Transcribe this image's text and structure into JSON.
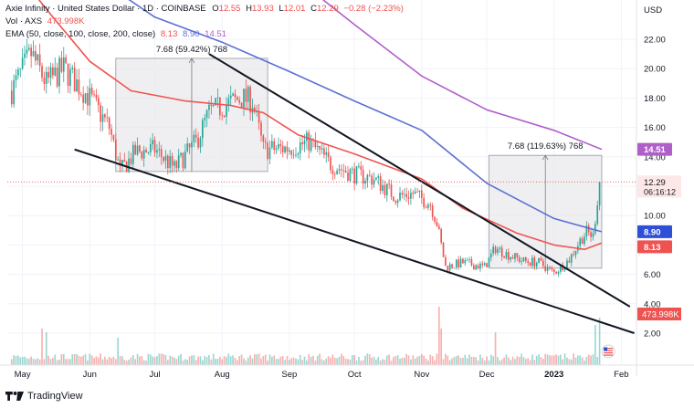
{
  "legend": {
    "symbol_title": "Axie Infinity · United States Dollar · 1D · COINBASE",
    "o_label": "O",
    "o_value": "12.55",
    "h_label": "H",
    "h_value": "13.93",
    "l_label": "L",
    "l_value": "12.01",
    "c_label": "C",
    "c_value": "12.29",
    "change": "−0.28 (−2.23%)",
    "vol_label": "Vol · AXS",
    "vol_value": "473.998K",
    "ema_label": "EMA (50, close, 100, close, 200, close)",
    "ema50": "8.13",
    "ema100": "8.90",
    "ema200": "14.51"
  },
  "footer": {
    "brand": "TradingView"
  },
  "colors": {
    "up": "#26a69a",
    "down": "#ef5350",
    "ema50": "#ef5350",
    "ema100": "#5b6fd4",
    "ema200": "#b05fc9",
    "box_fill": "#e9e9ec",
    "trendline": "#131722"
  },
  "chart_data": {
    "type": "candlestick",
    "currency_label": "USD",
    "y_ticks": [
      "22.00",
      "20.00",
      "18.00",
      "16.00",
      "14.00",
      "12.00",
      "10.00",
      "8.00",
      "6.00",
      "4.00",
      "2.00"
    ],
    "y_tick_values": [
      22,
      20,
      18,
      16,
      14,
      12,
      10,
      8,
      6,
      4,
      2
    ],
    "x_ticks": [
      "May",
      "Jun",
      "Jul",
      "Aug",
      "Sep",
      "Oct",
      "Nov",
      "Dec",
      "2023",
      "Feb"
    ],
    "x_tick_dates": [
      "2022-05-01",
      "2022-06-01",
      "2022-07-01",
      "2022-08-01",
      "2022-09-01",
      "2022-10-01",
      "2022-11-01",
      "2022-12-01",
      "2023-01-01",
      "2023-02-01"
    ],
    "date_range": [
      "2022-04-24",
      "2023-02-08"
    ],
    "price_path": [
      [
        "2022-04-26",
        18.5
      ],
      [
        "2022-05-05",
        21.0
      ],
      [
        "2022-05-12",
        19.0
      ],
      [
        "2022-05-20",
        20.0
      ],
      [
        "2022-06-01",
        18.0
      ],
      [
        "2022-06-10",
        16.0
      ],
      [
        "2022-06-15",
        13.0
      ],
      [
        "2022-06-22",
        14.3
      ],
      [
        "2022-07-01",
        14.5
      ],
      [
        "2022-07-10",
        13.2
      ],
      [
        "2022-07-20",
        15.0
      ],
      [
        "2022-07-26",
        17.0
      ],
      [
        "2022-08-02",
        17.5
      ],
      [
        "2022-08-10",
        18.0
      ],
      [
        "2022-08-15",
        17.8
      ],
      [
        "2022-08-20",
        14.5
      ],
      [
        "2022-09-01",
        14.6
      ],
      [
        "2022-09-10",
        15.0
      ],
      [
        "2022-09-20",
        13.5
      ],
      [
        "2022-10-01",
        12.8
      ],
      [
        "2022-10-10",
        12.5
      ],
      [
        "2022-10-20",
        11.3
      ],
      [
        "2022-10-28",
        11.5
      ],
      [
        "2022-11-05",
        10.8
      ],
      [
        "2022-11-08",
        9.5
      ],
      [
        "2022-11-12",
        6.5
      ],
      [
        "2022-11-20",
        6.8
      ],
      [
        "2022-11-30",
        6.5
      ],
      [
        "2022-12-05",
        7.8
      ],
      [
        "2022-12-10",
        7.4
      ],
      [
        "2022-12-18",
        6.9
      ],
      [
        "2022-12-25",
        6.8
      ],
      [
        "2023-01-01",
        6.1
      ],
      [
        "2023-01-08",
        7.0
      ],
      [
        "2023-01-13",
        8.3
      ],
      [
        "2023-01-16",
        8.9
      ],
      [
        "2023-01-19",
        8.6
      ],
      [
        "2023-01-22",
        12.3
      ]
    ],
    "ema50": [
      [
        "2022-04-26",
        27.0
      ],
      [
        "2022-05-15",
        23.5
      ],
      [
        "2022-06-01",
        20.5
      ],
      [
        "2022-06-20",
        18.5
      ],
      [
        "2022-07-15",
        17.8
      ],
      [
        "2022-08-05",
        17.5
      ],
      [
        "2022-08-20",
        17.0
      ],
      [
        "2022-09-05",
        15.5
      ],
      [
        "2022-10-01",
        14.2
      ],
      [
        "2022-11-01",
        12.5
      ],
      [
        "2022-11-20",
        10.5
      ],
      [
        "2022-12-15",
        8.8
      ],
      [
        "2023-01-01",
        8.0
      ],
      [
        "2023-01-15",
        7.7
      ],
      [
        "2023-01-23",
        8.13
      ]
    ],
    "ema100": [
      [
        "2022-05-10",
        29.0
      ],
      [
        "2022-06-01",
        26.5
      ],
      [
        "2022-07-01",
        23.5
      ],
      [
        "2022-08-01",
        21.8
      ],
      [
        "2022-09-01",
        19.8
      ],
      [
        "2022-10-01",
        17.8
      ],
      [
        "2022-11-01",
        15.8
      ],
      [
        "2022-12-01",
        12.2
      ],
      [
        "2023-01-01",
        9.8
      ],
      [
        "2023-01-23",
        8.9
      ]
    ],
    "ema200": [
      [
        "2022-08-01",
        29.0
      ],
      [
        "2022-09-01",
        26.5
      ],
      [
        "2022-10-01",
        23.0
      ],
      [
        "2022-11-01",
        19.5
      ],
      [
        "2022-12-01",
        17.2
      ],
      [
        "2023-01-01",
        15.8
      ],
      [
        "2023-01-23",
        14.51
      ]
    ],
    "pattern_boxes": [
      {
        "start": "2022-06-13",
        "end": "2022-08-22",
        "low": 13.0,
        "high": 20.7,
        "label": "7.68 (59.42%) 768"
      },
      {
        "start": "2022-12-02",
        "end": "2023-01-23",
        "low": 6.42,
        "high": 14.1,
        "label": "7.68 (119.63%) 768"
      }
    ],
    "trendlines": [
      {
        "name": "upper",
        "from": [
          "2022-07-26",
          21.0
        ],
        "to": [
          "2023-02-05",
          3.8
        ]
      },
      {
        "name": "lower",
        "from": [
          "2022-05-25",
          14.5
        ],
        "to": [
          "2023-02-07",
          2.0
        ]
      }
    ],
    "last_price": {
      "value": 12.29,
      "label": "12.29",
      "countdown": "06:16:12"
    },
    "ema_tags": [
      {
        "name": "ema200",
        "value": 14.51,
        "label": "14.51"
      },
      {
        "name": "ema100",
        "value": 8.9,
        "label": "8.90"
      },
      {
        "name": "ema50",
        "value": 8.13,
        "label": "8.13"
      }
    ],
    "volume": {
      "tag_label": "473.998K",
      "spikes": [
        [
          "2022-05-10",
          1.0
        ],
        [
          "2022-05-12",
          0.9
        ],
        [
          "2022-06-14",
          0.75
        ],
        [
          "2022-11-09",
          1.6
        ],
        [
          "2022-11-10",
          1.0
        ],
        [
          "2022-12-05",
          0.9
        ],
        [
          "2023-01-20",
          1.1
        ],
        [
          "2023-01-22",
          1.3
        ]
      ]
    }
  }
}
